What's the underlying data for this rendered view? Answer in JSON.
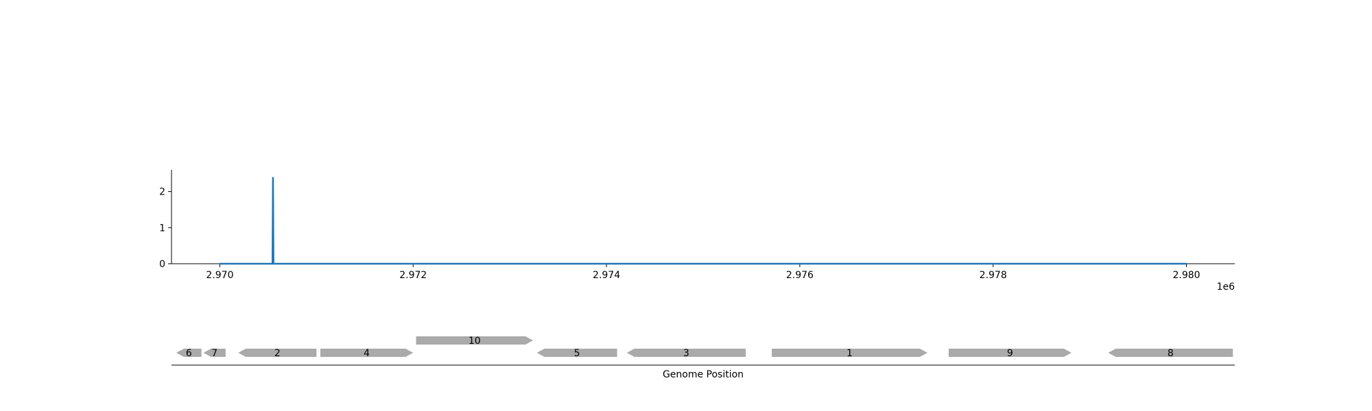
{
  "chart_data": {
    "type": "line",
    "x_offset_label": "1e6",
    "xlabel": "",
    "ylabel": "",
    "xlim": [
      2969500,
      2980500
    ],
    "ylim": [
      0,
      2.6
    ],
    "x_ticks": [
      2970000,
      2972000,
      2974000,
      2976000,
      2978000,
      2980000
    ],
    "x_tick_labels": [
      "2.970",
      "2.972",
      "2.974",
      "2.976",
      "2.978",
      "2.980"
    ],
    "y_ticks": [
      0,
      1,
      2
    ],
    "y_tick_labels": [
      "0",
      "1",
      "2"
    ],
    "grid": false,
    "line_color": "#1f77b4",
    "series": [
      {
        "x": [
          2970000,
          2970545,
          2970550,
          2970555,
          2980000
        ],
        "y": [
          0,
          0,
          2.4,
          0,
          0
        ]
      }
    ]
  },
  "gene_track": {
    "xlabel": "Genome Position",
    "gene_color": "#aaaaaa",
    "genes": [
      {
        "label": "6",
        "start": 2969550,
        "end": 2969810,
        "strand": "-",
        "row": 0
      },
      {
        "label": "7",
        "start": 2969830,
        "end": 2970060,
        "strand": "-",
        "row": 0
      },
      {
        "label": "2",
        "start": 2970190,
        "end": 2971000,
        "strand": "-",
        "row": 0
      },
      {
        "label": "4",
        "start": 2971040,
        "end": 2972000,
        "strand": "+",
        "row": 0
      },
      {
        "label": "10",
        "start": 2972030,
        "end": 2973240,
        "strand": "+",
        "row": 1
      },
      {
        "label": "5",
        "start": 2973280,
        "end": 2974110,
        "strand": "-",
        "row": 0
      },
      {
        "label": "3",
        "start": 2974210,
        "end": 2975440,
        "strand": "-",
        "row": 0
      },
      {
        "label": "1",
        "start": 2975710,
        "end": 2977320,
        "strand": "+",
        "row": 0
      },
      {
        "label": "9",
        "start": 2977540,
        "end": 2978810,
        "strand": "+",
        "row": 0
      },
      {
        "label": "8",
        "start": 2979190,
        "end": 2980480,
        "strand": "-",
        "row": 0
      }
    ]
  }
}
